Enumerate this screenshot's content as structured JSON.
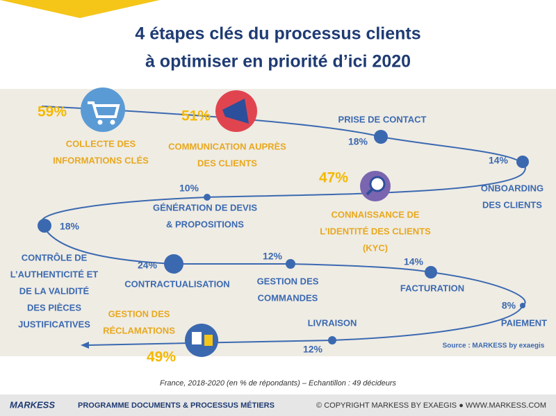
{
  "title": [
    "4 étapes clés du processus clients",
    "à optimiser en priorité d’ici 2020"
  ],
  "steps": [
    {
      "label": [
        "COLLECTE DES",
        "INFORMATIONS CLÉS"
      ],
      "value": "59%",
      "highlight": true
    },
    {
      "label": [
        "COMMUNICATION AUPRÈS",
        "DES CLIENTS"
      ],
      "value": "51%",
      "highlight": true
    },
    {
      "label": [
        "PRISE DE CONTACT"
      ],
      "value": "18%",
      "highlight": false
    },
    {
      "label": [
        "ONBOARDING",
        "DES CLIENTS"
      ],
      "value": "14%",
      "highlight": false
    },
    {
      "label": [
        "CONNAISSANCE DE",
        "L’IDENTITÉ DES CLIENTS",
        "(KYC)"
      ],
      "value": "47%",
      "highlight": true
    },
    {
      "label": [
        "GÉNÉRATION DE DEVIS",
        "& PROPOSITIONS"
      ],
      "value": "10%",
      "highlight": false
    },
    {
      "label": [
        "CONTRÔLE DE",
        "L’AUTHENTICITÉ ET",
        "DE LA VALIDITÉ",
        "DES PIÈCES",
        "JUSTIFICATIVES"
      ],
      "value": "18%",
      "highlight": false
    },
    {
      "label": [
        "CONTRACTUALISATION"
      ],
      "value": "24%",
      "highlight": false
    },
    {
      "label": [
        "GESTION DES",
        "COMMANDES"
      ],
      "value": "12%",
      "highlight": false
    },
    {
      "label": [
        "FACTURATION"
      ],
      "value": "14%",
      "highlight": false
    },
    {
      "label": [
        "PAIEMENT"
      ],
      "value": "8%",
      "highlight": false
    },
    {
      "label": [
        "LIVRAISON"
      ],
      "value": "12%",
      "highlight": false
    },
    {
      "label": [
        "GESTION DES",
        "RÉCLAMATIONS"
      ],
      "value": "49%",
      "highlight": true
    }
  ],
  "source": "Source : MARKESS  by exaegis",
  "note": "France, 2018-2020 (en % de répondants) – Echantillon : 49 décideurs",
  "footer": {
    "logo": "MARKESS",
    "program": "PROGRAMME DOCUMENTS & PROCESSUS MÉTIERS",
    "copyright": "© COPYRIGHT MARKESS BY EXAEGIS ● WWW.MARKESS.COM"
  }
}
